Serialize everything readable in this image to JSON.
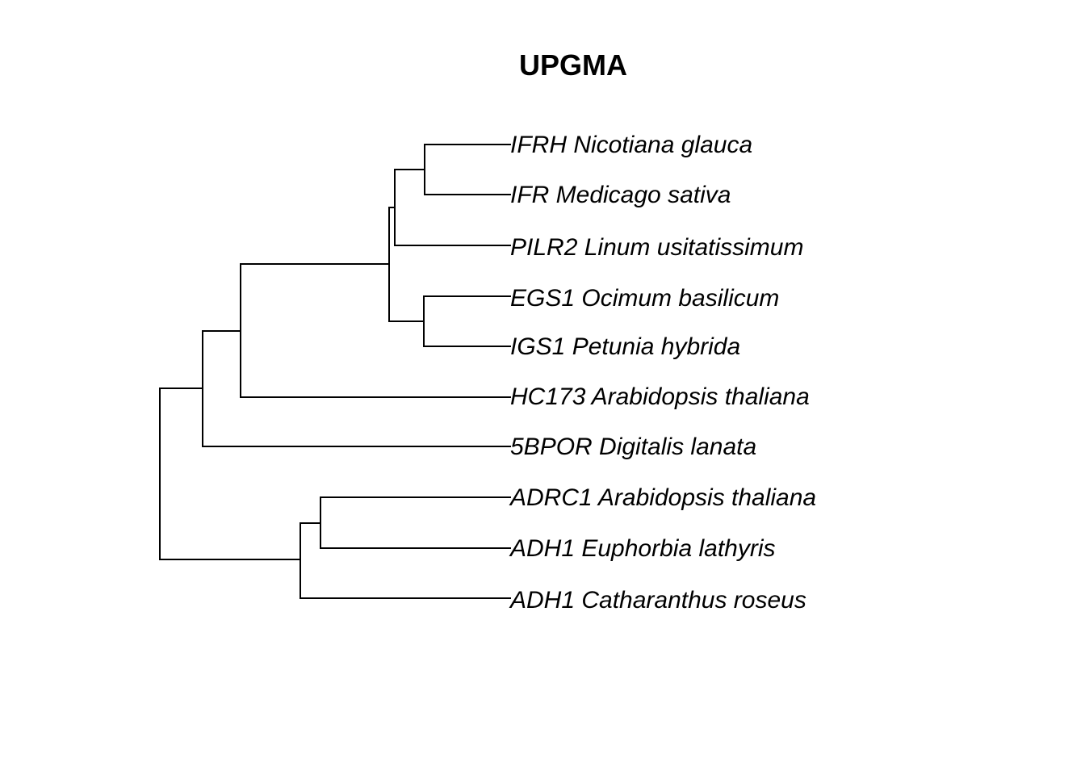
{
  "title": "UPGMA",
  "line_color": "#000000",
  "leaves": [
    "IFRH Nicotiana glauca",
    "IFR Medicago sativa",
    "PILR2 Linum usitatissimum",
    "EGS1 Ocimum basilicum",
    "IGS1 Petunia hybrida",
    "HC173 Arabidopsis thaliana",
    "5BPOR Digitalis lanata",
    "ADRC1 Arabidopsis thaliana",
    "ADH1 Euphorbia lathyris",
    "ADH1 Catharanthus roseus"
  ]
}
